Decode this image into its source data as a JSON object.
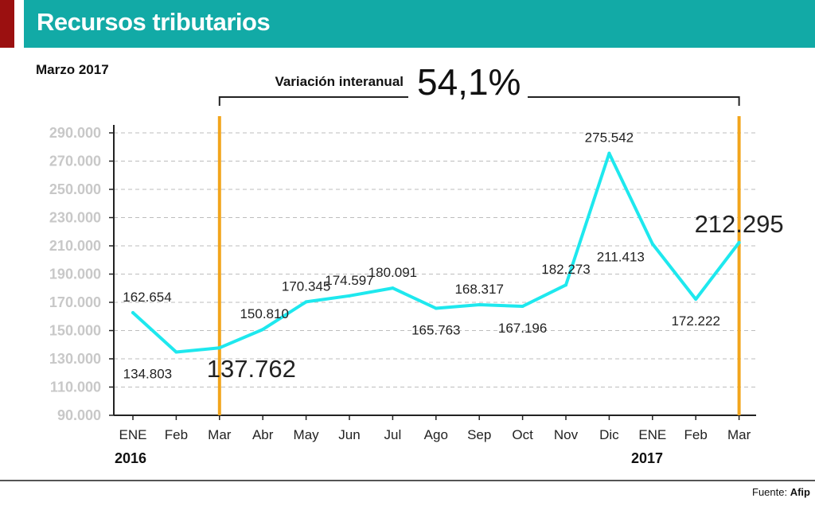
{
  "header": {
    "title": "Recursos tributarios"
  },
  "subtitle": "Marzo 2017",
  "variation": {
    "label": "Variación interanual",
    "value": "54,1%"
  },
  "years": [
    "2016",
    "2017"
  ],
  "footer": {
    "prefix": "Fuente: ",
    "source": "Afip"
  },
  "colors": {
    "header": "#12aaa6",
    "accent_bar": "#9b1010",
    "line": "#1ee8ee",
    "marker": "#f2a51c",
    "grid": "#bdbdbd"
  },
  "chart_data": {
    "type": "line",
    "title": "Recursos tributarios",
    "categories": [
      "ENE",
      "Feb",
      "Mar",
      "Abr",
      "May",
      "Jun",
      "Jul",
      "Ago",
      "Sep",
      "Oct",
      "Nov",
      "Dic",
      "ENE",
      "Feb",
      "Mar"
    ],
    "series": [
      {
        "name": "Recursos tributarios",
        "values": [
          162654,
          134803,
          137762,
          150810,
          170345,
          174597,
          180091,
          165763,
          168317,
          167196,
          182273,
          275542,
          211413,
          172222,
          212295
        ]
      }
    ],
    "labels": [
      "162.654",
      "134.803",
      "137.762",
      "150.810",
      "170.345",
      "174.597",
      "180.091",
      "165.763",
      "168.317",
      "167.196",
      "182.273",
      "275.542",
      "211.413",
      "172.222",
      "212.295"
    ],
    "label_position": [
      "above",
      "below",
      "below",
      "above",
      "above",
      "above",
      "above",
      "below",
      "above",
      "below",
      "above",
      "above",
      "left",
      "below",
      "above"
    ],
    "highlight_indices": [
      2,
      14
    ],
    "ylim": [
      90000,
      290000
    ],
    "yticks": [
      90000,
      110000,
      130000,
      150000,
      170000,
      190000,
      210000,
      230000,
      250000,
      270000,
      290000
    ],
    "ytick_labels": [
      "90.000",
      "110.000",
      "130.000",
      "150.000",
      "170.000",
      "190.000",
      "210.000",
      "230.000",
      "250.000",
      "270.000",
      "290.000"
    ],
    "grid": true,
    "xlabel": "",
    "ylabel": ""
  }
}
